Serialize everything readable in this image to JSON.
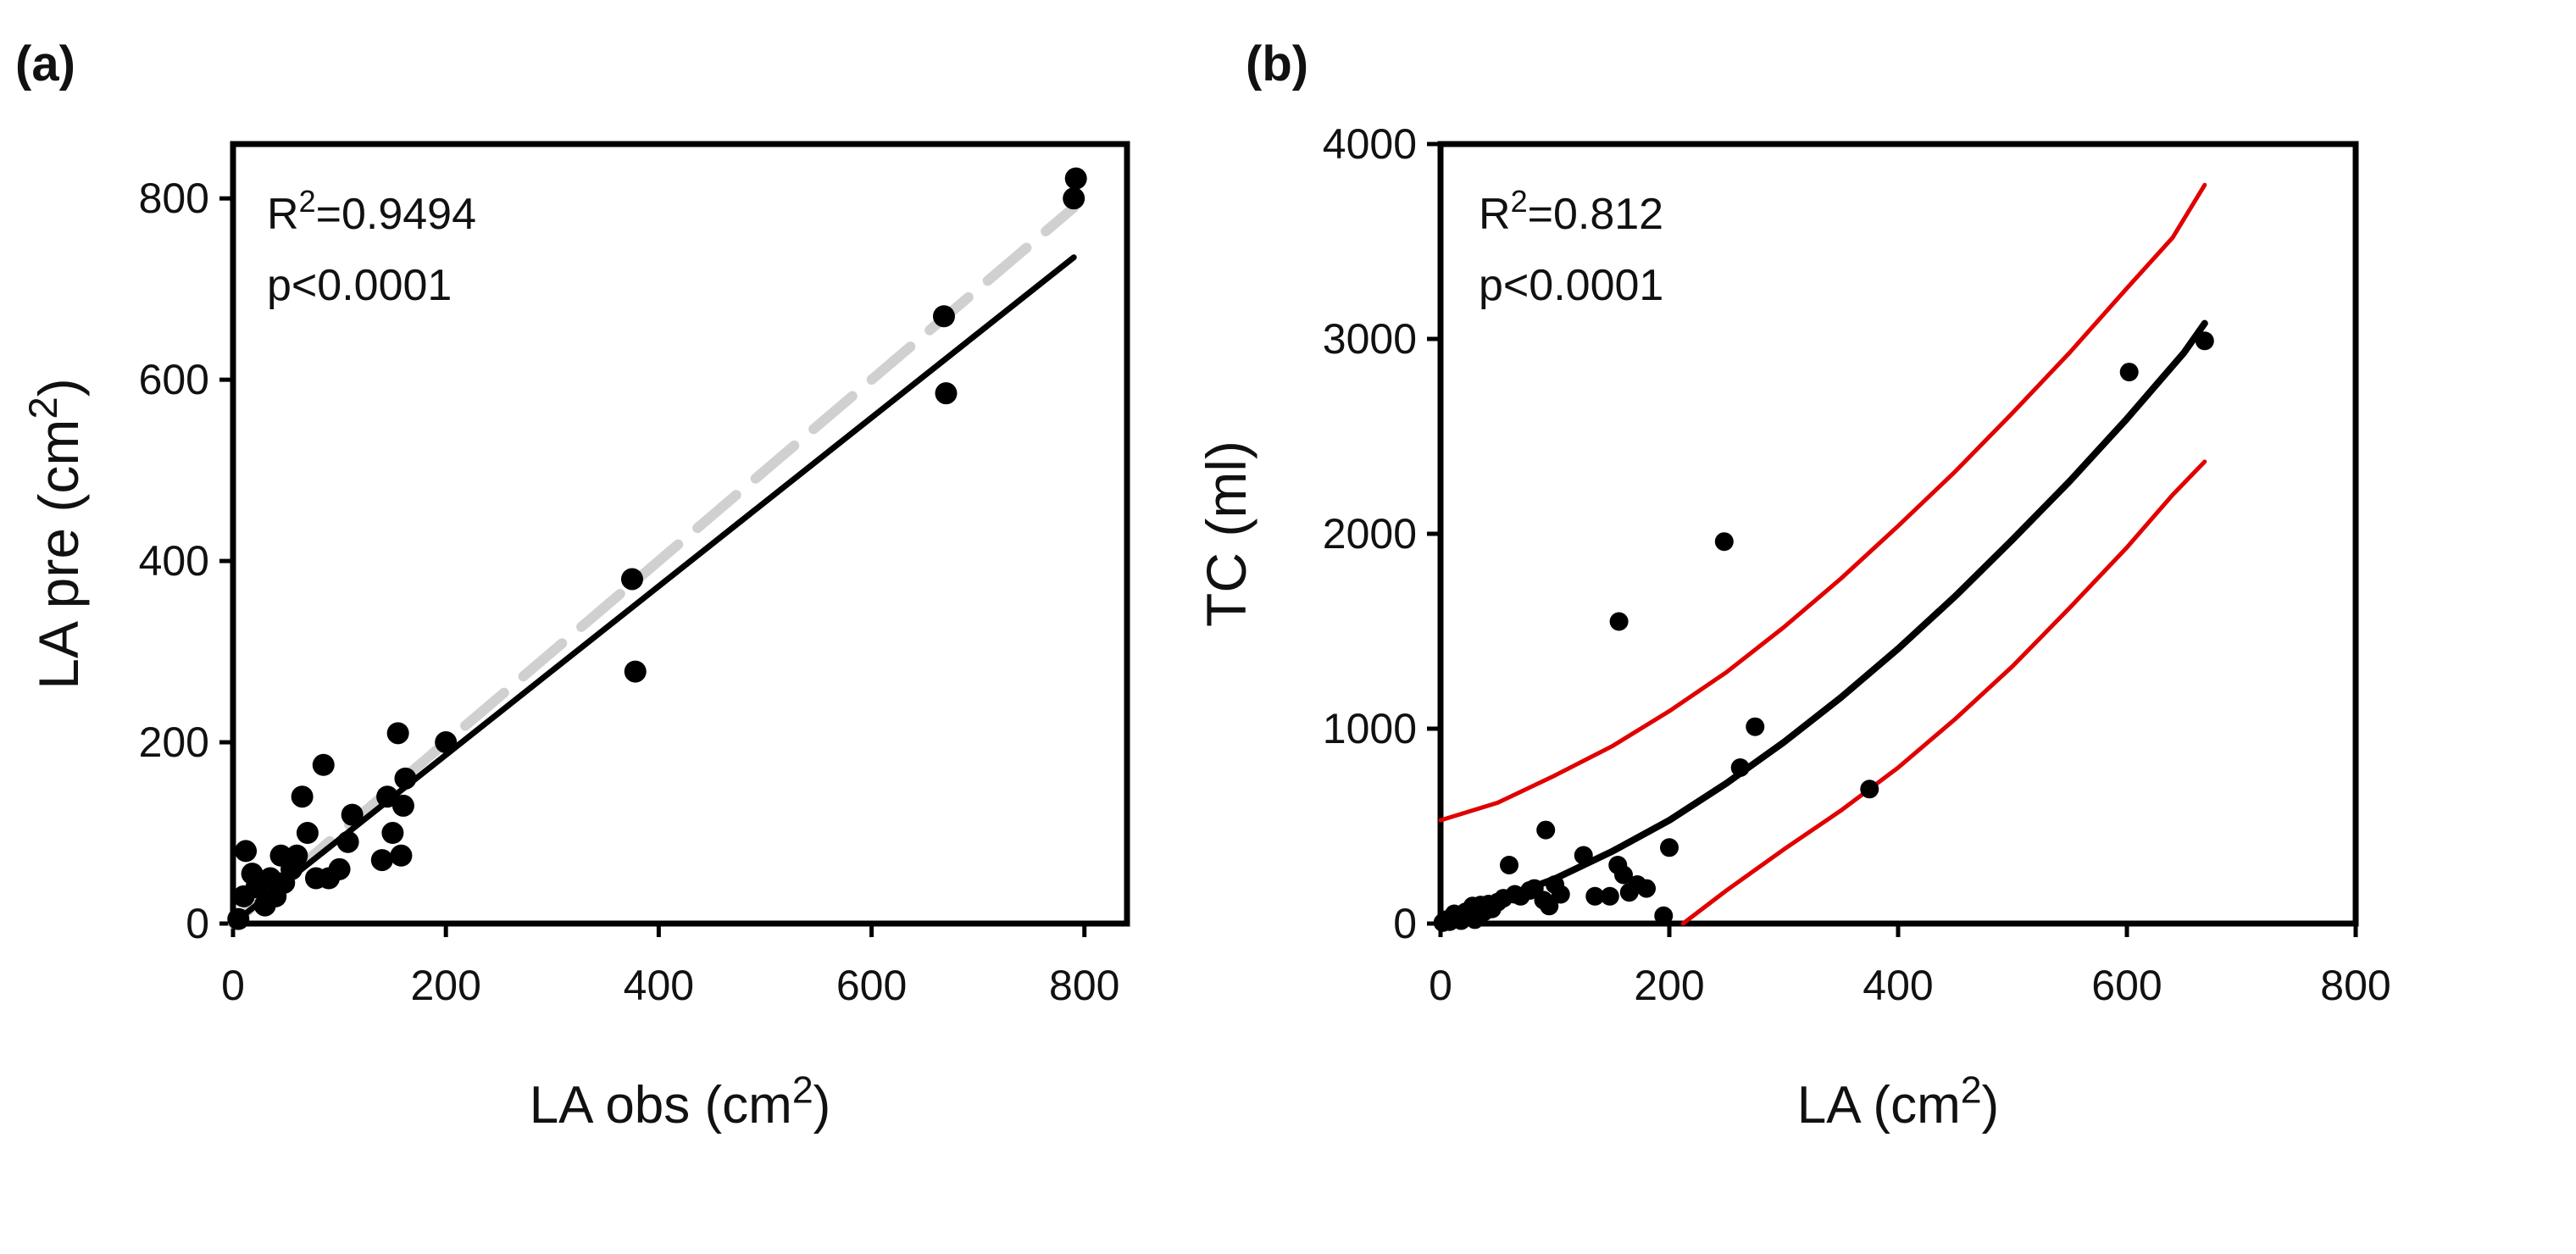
{
  "chart_data": [
    {
      "type": "scatter",
      "panel_label": "(a)",
      "xlabel": "LA obs (cm",
      "xlabel_sup": "2",
      "xlabel_end": ")",
      "ylabel": "LA pre (cm",
      "ylabel_sup": "2",
      "ylabel_end": ")",
      "xlim": [
        0,
        840
      ],
      "ylim": [
        0,
        860
      ],
      "xticks": [
        0,
        200,
        400,
        600,
        800
      ],
      "yticks": [
        0,
        200,
        400,
        600,
        800
      ],
      "annotation": {
        "r2_prefix": "R",
        "r2_sup": "2",
        "r2_value": "=0.9494",
        "p_text": "p<0.0001"
      },
      "points": [
        [
          5,
          5
        ],
        [
          10,
          30
        ],
        [
          12,
          80
        ],
        [
          18,
          55
        ],
        [
          22,
          40
        ],
        [
          30,
          20
        ],
        [
          35,
          50
        ],
        [
          40,
          30
        ],
        [
          45,
          75
        ],
        [
          48,
          45
        ],
        [
          55,
          60
        ],
        [
          60,
          75
        ],
        [
          65,
          140
        ],
        [
          70,
          100
        ],
        [
          78,
          50
        ],
        [
          85,
          175
        ],
        [
          90,
          50
        ],
        [
          100,
          60
        ],
        [
          108,
          90
        ],
        [
          112,
          120
        ],
        [
          140,
          70
        ],
        [
          145,
          140
        ],
        [
          150,
          100
        ],
        [
          155,
          210
        ],
        [
          158,
          75
        ],
        [
          160,
          130
        ],
        [
          162,
          160
        ],
        [
          200,
          200
        ],
        [
          375,
          380
        ],
        [
          378,
          278
        ],
        [
          668,
          670
        ],
        [
          670,
          585
        ],
        [
          790,
          800
        ],
        [
          792,
          822
        ]
      ],
      "fit_line": {
        "x": [
          0,
          790
        ],
        "y": [
          0,
          735
        ],
        "color": "#000000"
      },
      "one_to_one_line": {
        "x": [
          0,
          790
        ],
        "y": [
          0,
          790
        ],
        "color": "#d0d0d0",
        "style": "dashed"
      }
    },
    {
      "type": "scatter",
      "panel_label": "(b)",
      "xlabel": "LA (cm",
      "xlabel_sup": "2",
      "xlabel_end": ")",
      "ylabel": "TC (ml)",
      "xlim": [
        0,
        800
      ],
      "ylim": [
        0,
        4000
      ],
      "xticks": [
        0,
        200,
        400,
        600,
        800
      ],
      "yticks": [
        0,
        1000,
        2000,
        3000,
        4000
      ],
      "annotation": {
        "r2_prefix": "R",
        "r2_sup": "2",
        "r2_value": "=0.812",
        "p_text": "p<0.0001"
      },
      "points": [
        [
          2,
          5
        ],
        [
          5,
          20
        ],
        [
          8,
          10
        ],
        [
          12,
          50
        ],
        [
          15,
          30
        ],
        [
          18,
          15
        ],
        [
          22,
          60
        ],
        [
          25,
          40
        ],
        [
          28,
          90
        ],
        [
          30,
          20
        ],
        [
          35,
          95
        ],
        [
          38,
          60
        ],
        [
          42,
          100
        ],
        [
          45,
          75
        ],
        [
          50,
          110
        ],
        [
          55,
          130
        ],
        [
          60,
          300
        ],
        [
          65,
          150
        ],
        [
          70,
          140
        ],
        [
          78,
          170
        ],
        [
          82,
          180
        ],
        [
          90,
          120
        ],
        [
          92,
          480
        ],
        [
          95,
          90
        ],
        [
          100,
          200
        ],
        [
          105,
          150
        ],
        [
          125,
          350
        ],
        [
          135,
          140
        ],
        [
          148,
          140
        ],
        [
          155,
          300
        ],
        [
          156,
          1550
        ],
        [
          160,
          250
        ],
        [
          165,
          160
        ],
        [
          172,
          200
        ],
        [
          180,
          180
        ],
        [
          195,
          40
        ],
        [
          200,
          390
        ],
        [
          248,
          1960
        ],
        [
          262,
          800
        ],
        [
          275,
          1010
        ],
        [
          375,
          690
        ],
        [
          602,
          2830
        ],
        [
          668,
          2990
        ]
      ],
      "fit_curve": {
        "x": [
          0,
          50,
          100,
          150,
          200,
          250,
          300,
          350,
          400,
          450,
          500,
          550,
          600,
          650,
          668
        ],
        "y": [
          40,
          120,
          230,
          370,
          530,
          720,
          930,
          1160,
          1410,
          1680,
          1970,
          2270,
          2590,
          2930,
          3080
        ],
        "color": "#000000"
      },
      "upper_band": {
        "x": [
          0,
          50,
          100,
          150,
          200,
          250,
          300,
          350,
          400,
          450,
          500,
          550,
          600,
          640,
          668
        ],
        "y": [
          530,
          620,
          760,
          910,
          1090,
          1290,
          1520,
          1770,
          2040,
          2320,
          2620,
          2930,
          3260,
          3520,
          3790
        ],
        "color": "#e00000"
      },
      "lower_band": {
        "x": [
          212,
          250,
          300,
          350,
          400,
          450,
          500,
          550,
          600,
          640,
          668
        ],
        "y": [
          0,
          170,
          380,
          580,
          800,
          1050,
          1320,
          1620,
          1930,
          2200,
          2370
        ],
        "color": "#e00000"
      }
    }
  ]
}
